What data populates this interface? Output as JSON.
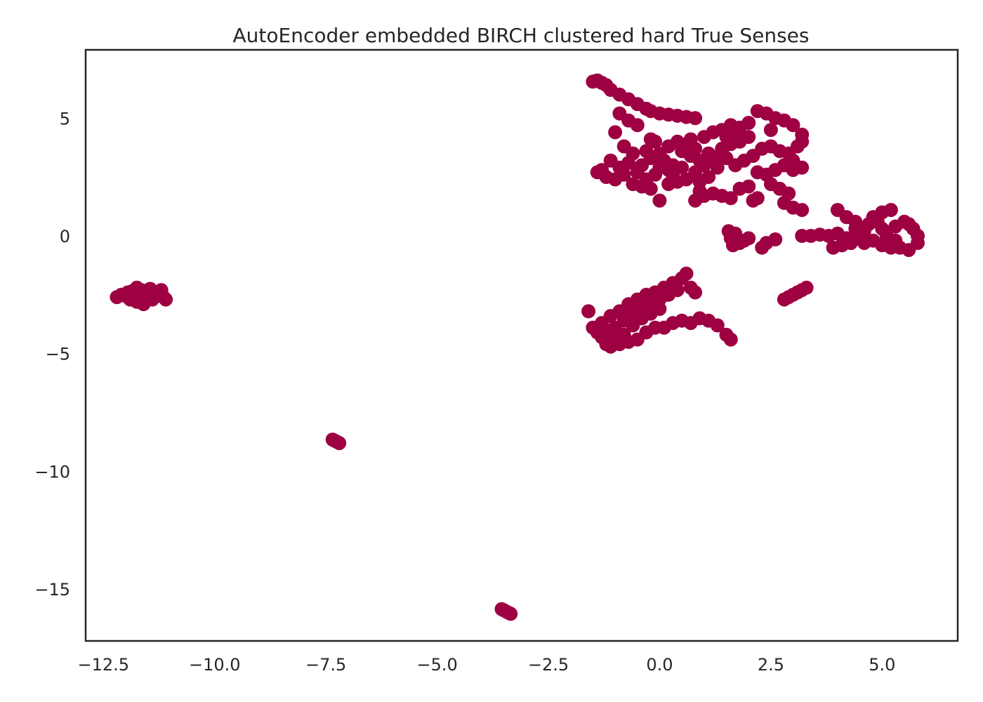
{
  "chart_data": {
    "type": "scatter",
    "title": "AutoEncoder embedded BIRCH clustered hard True Senses",
    "xlabel": "",
    "ylabel": "",
    "xlim": [
      -12.9,
      6.7
    ],
    "ylim": [
      -17.2,
      7.9
    ],
    "x_ticks": [
      -12.5,
      -10.0,
      -7.5,
      -5.0,
      -2.5,
      0.0,
      2.5,
      5.0
    ],
    "x_tick_labels": [
      "−12.5",
      "−10.0",
      "−7.5",
      "−5.0",
      "−2.5",
      "0.0",
      "2.5",
      "5.0"
    ],
    "y_ticks": [
      5,
      0,
      -5,
      -10,
      -15
    ],
    "y_tick_labels": [
      "5",
      "0",
      "−5",
      "−10",
      "−15"
    ],
    "grid": false,
    "legend": "none",
    "marker_color": "#9e0142",
    "series": [
      {
        "points": [
          [
            -12.2,
            -2.6
          ],
          [
            -12.1,
            -2.5
          ],
          [
            -12.0,
            -2.55
          ],
          [
            -11.95,
            -2.4
          ],
          [
            -11.9,
            -2.7
          ],
          [
            -11.85,
            -2.35
          ],
          [
            -11.8,
            -2.6
          ],
          [
            -11.75,
            -2.8
          ],
          [
            -11.7,
            -2.45
          ],
          [
            -11.65,
            -2.3
          ],
          [
            -11.6,
            -2.9
          ],
          [
            -11.55,
            -2.65
          ],
          [
            -11.5,
            -2.5
          ],
          [
            -11.45,
            -2.25
          ],
          [
            -11.4,
            -2.7
          ],
          [
            -11.35,
            -2.4
          ],
          [
            -11.3,
            -2.55
          ],
          [
            -11.2,
            -2.3
          ],
          [
            -11.15,
            -2.6
          ],
          [
            -11.1,
            -2.7
          ],
          [
            -11.75,
            -2.2
          ],
          [
            -11.6,
            -2.75
          ],
          [
            -11.9,
            -2.55
          ],
          [
            -7.35,
            -8.65
          ],
          [
            -7.3,
            -8.7
          ],
          [
            -7.25,
            -8.75
          ],
          [
            -7.2,
            -8.8
          ],
          [
            -3.55,
            -15.85
          ],
          [
            -3.5,
            -15.9
          ],
          [
            -3.45,
            -15.95
          ],
          [
            -3.4,
            -16.0
          ],
          [
            -3.35,
            -16.05
          ],
          [
            -1.4,
            6.6
          ],
          [
            -1.3,
            6.5
          ],
          [
            -1.5,
            6.55
          ],
          [
            -1.2,
            6.4
          ],
          [
            -1.1,
            6.2
          ],
          [
            -0.9,
            6.0
          ],
          [
            -0.7,
            5.8
          ],
          [
            -0.5,
            5.6
          ],
          [
            -0.3,
            5.4
          ],
          [
            -0.2,
            5.3
          ],
          [
            0.0,
            5.2
          ],
          [
            0.2,
            5.15
          ],
          [
            0.4,
            5.1
          ],
          [
            0.6,
            5.05
          ],
          [
            0.8,
            5.0
          ],
          [
            -0.9,
            5.2
          ],
          [
            -0.7,
            4.9
          ],
          [
            -0.5,
            4.7
          ],
          [
            -0.2,
            4.1
          ],
          [
            -0.1,
            4.0
          ],
          [
            0.4,
            4.0
          ],
          [
            0.6,
            3.9
          ],
          [
            0.8,
            3.7
          ],
          [
            -1.0,
            4.4
          ],
          [
            -0.8,
            3.8
          ],
          [
            -0.6,
            3.5
          ],
          [
            -0.4,
            3.0
          ],
          [
            -0.2,
            3.3
          ],
          [
            0.0,
            3.5
          ],
          [
            0.1,
            3.2
          ],
          [
            0.2,
            2.8
          ],
          [
            0.3,
            2.5
          ],
          [
            0.0,
            2.9
          ],
          [
            -0.1,
            2.6
          ],
          [
            -0.3,
            2.4
          ],
          [
            -0.5,
            2.7
          ],
          [
            -0.7,
            3.1
          ],
          [
            -0.9,
            2.9
          ],
          [
            -1.1,
            3.2
          ],
          [
            -1.3,
            2.8
          ],
          [
            -1.4,
            2.7
          ],
          [
            -1.2,
            2.5
          ],
          [
            -1.0,
            2.4
          ],
          [
            -0.8,
            2.6
          ],
          [
            -0.6,
            2.2
          ],
          [
            -0.4,
            2.1
          ],
          [
            -0.2,
            2.0
          ],
          [
            0.0,
            1.5
          ],
          [
            0.2,
            2.2
          ],
          [
            0.4,
            2.3
          ],
          [
            0.6,
            2.4
          ],
          [
            0.8,
            2.7
          ],
          [
            1.0,
            3.0
          ],
          [
            1.2,
            3.3
          ],
          [
            1.4,
            3.6
          ],
          [
            1.0,
            4.2
          ],
          [
            1.2,
            4.4
          ],
          [
            1.4,
            4.5
          ],
          [
            1.6,
            4.7
          ],
          [
            1.8,
            4.6
          ],
          [
            2.0,
            4.8
          ],
          [
            2.2,
            5.3
          ],
          [
            2.4,
            5.2
          ],
          [
            2.6,
            5.0
          ],
          [
            2.8,
            4.9
          ],
          [
            3.0,
            4.7
          ],
          [
            2.5,
            4.5
          ],
          [
            2.0,
            4.2
          ],
          [
            1.8,
            4.0
          ],
          [
            1.6,
            3.9
          ],
          [
            1.4,
            3.7
          ],
          [
            1.5,
            3.3
          ],
          [
            1.7,
            3.0
          ],
          [
            1.9,
            3.2
          ],
          [
            2.1,
            3.4
          ],
          [
            2.3,
            3.7
          ],
          [
            2.5,
            3.8
          ],
          [
            2.7,
            3.6
          ],
          [
            2.9,
            3.5
          ],
          [
            3.1,
            3.8
          ],
          [
            3.2,
            4.0
          ],
          [
            3.2,
            4.3
          ],
          [
            3.0,
            3.2
          ],
          [
            2.8,
            3.0
          ],
          [
            2.6,
            2.8
          ],
          [
            2.4,
            2.6
          ],
          [
            2.2,
            2.7
          ],
          [
            3.0,
            2.8
          ],
          [
            3.2,
            2.9
          ],
          [
            2.5,
            2.2
          ],
          [
            2.7,
            2.0
          ],
          [
            2.9,
            1.8
          ],
          [
            2.8,
            1.4
          ],
          [
            3.0,
            1.2
          ],
          [
            3.2,
            1.1
          ],
          [
            2.0,
            2.1
          ],
          [
            1.8,
            2.0
          ],
          [
            1.6,
            1.6
          ],
          [
            1.4,
            1.7
          ],
          [
            1.2,
            1.8
          ],
          [
            1.0,
            1.7
          ],
          [
            0.8,
            1.5
          ],
          [
            0.9,
            1.9
          ],
          [
            2.1,
            1.5
          ],
          [
            2.2,
            1.6
          ],
          [
            0.2,
            3.8
          ],
          [
            0.5,
            3.6
          ],
          [
            0.7,
            3.4
          ],
          [
            0.9,
            3.2
          ],
          [
            1.1,
            3.5
          ],
          [
            1.3,
            2.9
          ],
          [
            1.1,
            2.5
          ],
          [
            0.9,
            2.3
          ],
          [
            0.3,
            3.0
          ],
          [
            0.5,
            2.9
          ],
          [
            -0.3,
            3.6
          ],
          [
            1.5,
            4.2
          ],
          [
            1.7,
            4.4
          ],
          [
            0.7,
            4.1
          ],
          [
            1.6,
            -0.1
          ],
          [
            1.7,
            0.1
          ],
          [
            1.8,
            -0.3
          ],
          [
            1.65,
            -0.4
          ],
          [
            1.55,
            0.2
          ],
          [
            1.9,
            -0.2
          ],
          [
            2.0,
            -0.1
          ],
          [
            2.3,
            -0.5
          ],
          [
            2.4,
            -0.3
          ],
          [
            2.6,
            -0.15
          ],
          [
            3.2,
            0.0
          ],
          [
            3.4,
            0.0
          ],
          [
            3.6,
            0.05
          ],
          [
            3.8,
            0.0
          ],
          [
            4.0,
            0.1
          ],
          [
            4.2,
            -0.1
          ],
          [
            4.4,
            0.3
          ],
          [
            4.6,
            0.2
          ],
          [
            4.8,
            -0.2
          ],
          [
            5.0,
            -0.4
          ],
          [
            5.2,
            -0.5
          ],
          [
            5.4,
            -0.5
          ],
          [
            5.6,
            -0.6
          ],
          [
            5.8,
            -0.3
          ],
          [
            5.8,
            0.0
          ],
          [
            5.7,
            0.3
          ],
          [
            5.6,
            0.5
          ],
          [
            5.5,
            0.6
          ],
          [
            5.3,
            0.4
          ],
          [
            5.2,
            1.1
          ],
          [
            5.0,
            1.0
          ],
          [
            4.9,
            0.6
          ],
          [
            4.7,
            0.5
          ],
          [
            4.5,
            0.0
          ],
          [
            4.3,
            -0.3
          ],
          [
            4.1,
            -0.4
          ],
          [
            3.9,
            -0.5
          ],
          [
            4.0,
            1.1
          ],
          [
            4.2,
            0.8
          ],
          [
            4.4,
            0.6
          ],
          [
            5.0,
            0.3
          ],
          [
            5.1,
            0.0
          ],
          [
            5.3,
            -0.2
          ],
          [
            4.6,
            -0.3
          ],
          [
            4.8,
            0.8
          ],
          [
            3.3,
            -2.2
          ],
          [
            3.2,
            -2.3
          ],
          [
            3.1,
            -2.4
          ],
          [
            3.0,
            -2.5
          ],
          [
            2.9,
            -2.6
          ],
          [
            2.8,
            -2.7
          ],
          [
            -1.6,
            -3.2
          ],
          [
            -1.5,
            -3.9
          ],
          [
            -1.4,
            -4.1
          ],
          [
            -1.3,
            -4.3
          ],
          [
            -1.2,
            -4.6
          ],
          [
            -1.1,
            -4.7
          ],
          [
            -0.9,
            -4.6
          ],
          [
            -0.7,
            -4.5
          ],
          [
            -0.5,
            -4.4
          ],
          [
            -0.3,
            -4.1
          ],
          [
            -0.1,
            -3.9
          ],
          [
            0.1,
            -3.9
          ],
          [
            0.3,
            -3.7
          ],
          [
            0.5,
            -3.6
          ],
          [
            0.7,
            -3.7
          ],
          [
            0.9,
            -3.5
          ],
          [
            1.1,
            -3.6
          ],
          [
            1.3,
            -3.8
          ],
          [
            1.5,
            -4.2
          ],
          [
            1.6,
            -4.4
          ],
          [
            -1.3,
            -3.7
          ],
          [
            -1.1,
            -3.4
          ],
          [
            -0.9,
            -3.2
          ],
          [
            -0.7,
            -2.9
          ],
          [
            -0.5,
            -2.7
          ],
          [
            -0.3,
            -2.5
          ],
          [
            -0.1,
            -2.4
          ],
          [
            0.1,
            -2.2
          ],
          [
            0.3,
            -2.0
          ],
          [
            0.5,
            -1.8
          ],
          [
            0.6,
            -1.6
          ],
          [
            -1.0,
            -3.9
          ],
          [
            -0.8,
            -3.6
          ],
          [
            -0.6,
            -3.3
          ],
          [
            -0.4,
            -3.1
          ],
          [
            -0.2,
            -2.9
          ],
          [
            0.0,
            -2.7
          ],
          [
            0.2,
            -2.5
          ],
          [
            0.4,
            -2.3
          ],
          [
            0.7,
            -2.2
          ],
          [
            0.8,
            -2.4
          ],
          [
            -1.2,
            -4.0
          ],
          [
            -1.0,
            -4.3
          ],
          [
            -0.8,
            -4.2
          ],
          [
            -0.6,
            -3.8
          ],
          [
            -0.4,
            -3.5
          ],
          [
            0.0,
            -3.1
          ],
          [
            -0.2,
            -3.3
          ]
        ]
      }
    ]
  }
}
